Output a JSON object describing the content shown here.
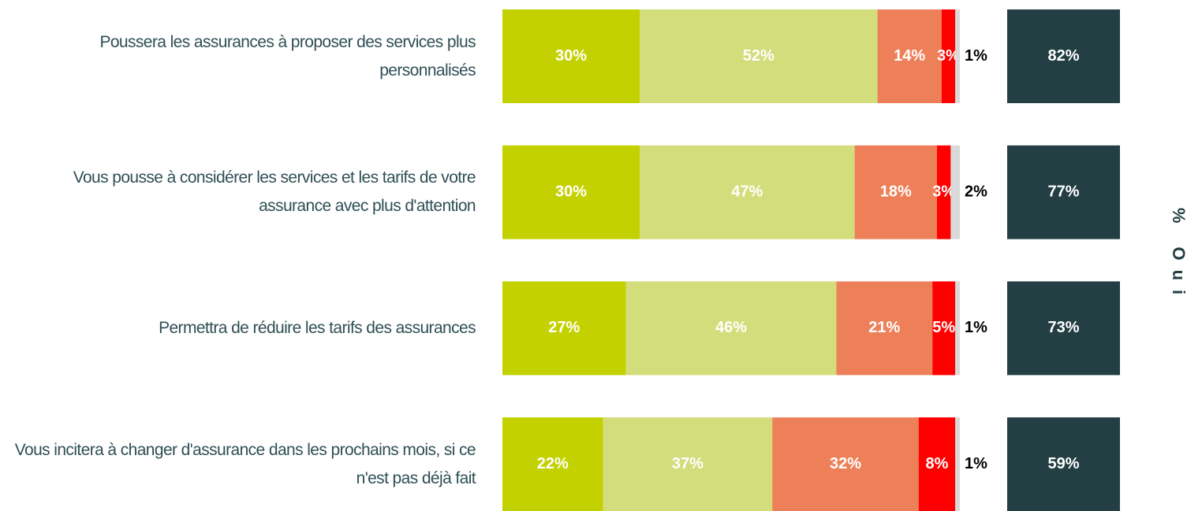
{
  "chart_data": {
    "type": "bar",
    "orientation": "horizontal",
    "stacked": true,
    "categories": [
      "Poussera les assurances à proposer des services plus personnalisés",
      "Vous pousse à considérer les services et les tarifs de votre assurance avec plus d'attention",
      "Permettra de réduire les tarifs des assurances",
      "Vous incitera à changer d'assurance dans les prochains mois, si ce n'est pas déjà fait"
    ],
    "xlim": [
      0,
      100
    ],
    "series": [
      {
        "color": "#c3d100",
        "values": [
          30,
          30,
          27,
          22
        ],
        "value_labels": [
          "30%",
          "30%",
          "27%",
          "22%"
        ]
      },
      {
        "color": "#d3dd7b",
        "values": [
          52,
          47,
          46,
          37
        ],
        "value_labels": [
          "52%",
          "47%",
          "46%",
          "37%"
        ]
      },
      {
        "color": "#ee8059",
        "values": [
          14,
          18,
          21,
          32
        ],
        "value_labels": [
          "14%",
          "18%",
          "21%",
          "32%"
        ]
      },
      {
        "color": "#ff0000",
        "values": [
          3,
          3,
          5,
          8
        ],
        "value_labels": [
          "3%",
          "3%",
          "5%",
          "8%"
        ]
      },
      {
        "color": "#d9d9d9",
        "values": [
          1,
          2,
          1,
          1
        ],
        "value_labels": [
          "1%",
          "2%",
          "1%",
          "1%"
        ],
        "label_outside": true
      }
    ],
    "totals": {
      "label": "% Oui",
      "color": "#233f44",
      "values": [
        82,
        77,
        73,
        59
      ],
      "value_labels": [
        "82%",
        "77%",
        "73%",
        "59%"
      ]
    }
  }
}
